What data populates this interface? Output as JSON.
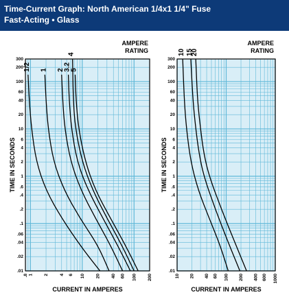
{
  "header": {
    "title_line1": "Time-Current Graph: North American 1/4x1 1/4\" Fuse",
    "title_line2": "Fast-Acting • Glass"
  },
  "colors": {
    "header_bg": "#0d3a78",
    "plot_bg": "#d9eef7",
    "grid": "#5fb8d8",
    "curve": "#000000"
  },
  "chart_data": [
    {
      "type": "line",
      "xscale": "log",
      "yscale": "log",
      "xlim": [
        0.8,
        200
      ],
      "ylim": [
        0.01,
        300
      ],
      "xlabel": "CURRENT IN AMPERES",
      "ylabel": "TIME IN SECONDS",
      "legend_title_line1": "AMPERE",
      "legend_title_line2": "RATING",
      "grid": true,
      "xticks": [
        {
          "v": 0.8,
          "label": ".8"
        },
        {
          "v": 1,
          "label": "1"
        },
        {
          "v": 2,
          "label": "2"
        },
        {
          "v": 4,
          "label": "4"
        },
        {
          "v": 6,
          "label": "6"
        },
        {
          "v": 10,
          "label": "10"
        },
        {
          "v": 20,
          "label": "20"
        },
        {
          "v": 40,
          "label": "40"
        },
        {
          "v": 60,
          "label": "60"
        },
        {
          "v": 100,
          "label": "100"
        },
        {
          "v": 200,
          "label": "200"
        }
      ],
      "yticks": [
        {
          "v": 0.01,
          "label": ".01"
        },
        {
          "v": 0.02,
          "label": ".02"
        },
        {
          "v": 0.04,
          "label": ".04"
        },
        {
          "v": 0.06,
          "label": ".06"
        },
        {
          "v": 0.1,
          "label": ".1"
        },
        {
          "v": 0.2,
          "label": ".2"
        },
        {
          "v": 0.4,
          "label": ".4"
        },
        {
          "v": 0.6,
          "label": ".6"
        },
        {
          "v": 1,
          "label": "1"
        },
        {
          "v": 2,
          "label": "2"
        },
        {
          "v": 4,
          "label": "4"
        },
        {
          "v": 6,
          "label": "6"
        },
        {
          "v": 10,
          "label": "10"
        },
        {
          "v": 20,
          "label": "20"
        },
        {
          "v": 40,
          "label": "40"
        },
        {
          "v": 60,
          "label": "60"
        },
        {
          "v": 100,
          "label": "100"
        },
        {
          "v": 200,
          "label": "200"
        },
        {
          "v": 300,
          "label": "300"
        }
      ],
      "series": [
        {
          "name": "1/2",
          "points": [
            [
              0.9,
              140
            ],
            [
              0.95,
              40
            ],
            [
              1.05,
              10
            ],
            [
              1.3,
              2
            ],
            [
              2,
              0.5
            ],
            [
              4,
              0.13
            ],
            [
              10,
              0.03
            ],
            [
              22,
              0.01
            ]
          ]
        },
        {
          "name": "1",
          "points": [
            [
              1.9,
              140
            ],
            [
              2.0,
              40
            ],
            [
              2.2,
              10
            ],
            [
              2.8,
              2
            ],
            [
              4.5,
              0.5
            ],
            [
              9,
              0.13
            ],
            [
              20,
              0.035
            ],
            [
              33,
              0.01
            ]
          ]
        },
        {
          "name": "2",
          "points": [
            [
              4.0,
              140
            ],
            [
              4.2,
              40
            ],
            [
              4.6,
              10
            ],
            [
              6,
              2
            ],
            [
              9.5,
              0.5
            ],
            [
              18,
              0.13
            ],
            [
              35,
              0.035
            ],
            [
              60,
              0.01
            ]
          ]
        },
        {
          "name": "3.2",
          "points": [
            [
              5.4,
              140
            ],
            [
              5.6,
              40
            ],
            [
              6.2,
              10
            ],
            [
              8,
              2
            ],
            [
              13,
              0.5
            ],
            [
              25,
              0.13
            ],
            [
              48,
              0.035
            ],
            [
              85,
              0.01
            ]
          ]
        },
        {
          "name": "4",
          "points": [
            [
              6.5,
              300
            ],
            [
              6.7,
              40
            ],
            [
              7.4,
              10
            ],
            [
              10,
              2
            ],
            [
              16,
              0.5
            ],
            [
              30,
              0.13
            ],
            [
              58,
              0.035
            ],
            [
              100,
              0.01
            ]
          ]
        },
        {
          "name": "5",
          "points": [
            [
              7.3,
              140
            ],
            [
              7.6,
              40
            ],
            [
              8.5,
              10
            ],
            [
              11.5,
              2
            ],
            [
              18,
              0.5
            ],
            [
              35,
              0.13
            ],
            [
              68,
              0.035
            ],
            [
              120,
              0.01
            ]
          ]
        }
      ]
    },
    {
      "type": "line",
      "xscale": "log",
      "yscale": "log",
      "xlim": [
        10,
        1000
      ],
      "ylim": [
        0.01,
        300
      ],
      "xlabel": "CURRENT IN AMPERES",
      "ylabel": "TIME IN SECONDS",
      "legend_title_line1": "AMPERE",
      "legend_title_line2": "RATING",
      "grid": true,
      "xticks": [
        {
          "v": 10,
          "label": "10"
        },
        {
          "v": 20,
          "label": "20"
        },
        {
          "v": 40,
          "label": "40"
        },
        {
          "v": 60,
          "label": "60"
        },
        {
          "v": 100,
          "label": "100"
        },
        {
          "v": 200,
          "label": "200"
        },
        {
          "v": 400,
          "label": "400"
        },
        {
          "v": 600,
          "label": "600"
        },
        {
          "v": 1000,
          "label": "1000"
        }
      ],
      "yticks": [
        {
          "v": 0.01,
          "label": ".01"
        },
        {
          "v": 0.02,
          "label": ".02"
        },
        {
          "v": 0.04,
          "label": ".04"
        },
        {
          "v": 0.06,
          "label": ".06"
        },
        {
          "v": 0.1,
          "label": ".1"
        },
        {
          "v": 0.2,
          "label": ".2"
        },
        {
          "v": 0.4,
          "label": ".4"
        },
        {
          "v": 0.6,
          "label": ".6"
        },
        {
          "v": 1,
          "label": "1"
        },
        {
          "v": 2,
          "label": "2"
        },
        {
          "v": 4,
          "label": "4"
        },
        {
          "v": 6,
          "label": "6"
        },
        {
          "v": 10,
          "label": "10"
        },
        {
          "v": 20,
          "label": "20"
        },
        {
          "v": 40,
          "label": "40"
        },
        {
          "v": 60,
          "label": "60"
        },
        {
          "v": 100,
          "label": "100"
        },
        {
          "v": 200,
          "label": "200"
        },
        {
          "v": 300,
          "label": "300"
        }
      ],
      "series": [
        {
          "name": "10",
          "points": [
            [
              13,
              300
            ],
            [
              14,
              40
            ],
            [
              15.5,
              10
            ],
            [
              19,
              2
            ],
            [
              27,
              0.5
            ],
            [
              45,
              0.13
            ],
            [
              75,
              0.035
            ],
            [
              110,
              0.01
            ]
          ]
        },
        {
          "name": "15",
          "points": [
            [
              19,
              300
            ],
            [
              21,
              40
            ],
            [
              24,
              10
            ],
            [
              28,
              3
            ],
            [
              35,
              1
            ],
            [
              60,
              0.2
            ],
            [
              110,
              0.04
            ],
            [
              190,
              0.01
            ]
          ]
        },
        {
          "name": "20",
          "points": [
            [
              24,
              300
            ],
            [
              26,
              40
            ],
            [
              30,
              10
            ],
            [
              35,
              3
            ],
            [
              45,
              1
            ],
            [
              80,
              0.2
            ],
            [
              150,
              0.04
            ],
            [
              260,
              0.01
            ]
          ]
        }
      ]
    }
  ]
}
